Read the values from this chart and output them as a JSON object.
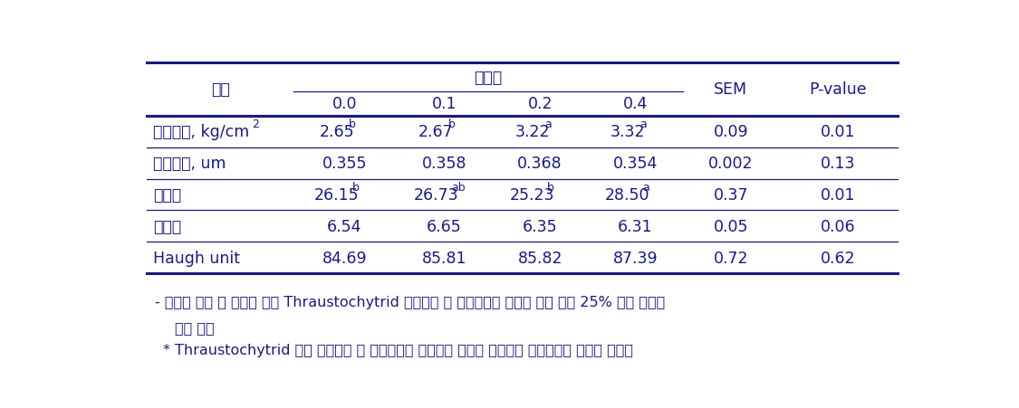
{
  "rows": [
    {
      "col0": "난각강도, kg/cm",
      "col0_sup": "2",
      "col1": "2.65",
      "col1_sup": "b",
      "col2": "2.67",
      "col2_sup": "b",
      "col3": "3.22",
      "col3_sup": "a",
      "col4": "3.32",
      "col4_sup": "a",
      "col5": "0.09",
      "col6": "0.01"
    },
    {
      "col0": "난각두께, um",
      "col0_sup": "",
      "col1": "0.355",
      "col1_sup": "",
      "col2": "0.358",
      "col2_sup": "",
      "col3": "0.368",
      "col3_sup": "",
      "col4": "0.354",
      "col4_sup": "",
      "col5": "0.002",
      "col6": "0.13"
    },
    {
      "col0": "난각색",
      "col0_sup": "",
      "col1": "26.15",
      "col1_sup": "b",
      "col2": "26.73",
      "col2_sup": "ab",
      "col3": "25.23",
      "col3_sup": "b",
      "col4": "28.50",
      "col4_sup": "a",
      "col5": "0.37",
      "col6": "0.01"
    },
    {
      "col0": "난황색",
      "col0_sup": "",
      "col1": "6.54",
      "col1_sup": "",
      "col2": "6.65",
      "col2_sup": "",
      "col3": "6.35",
      "col3_sup": "",
      "col4": "6.31",
      "col4_sup": "",
      "col5": "0.05",
      "col6": "0.06"
    },
    {
      "col0": "Haugh unit",
      "col0_sup": "",
      "col1": "84.69",
      "col1_sup": "",
      "col2": "85.81",
      "col2_sup": "",
      "col3": "85.82",
      "col3_sup": "",
      "col4": "87.39",
      "col4_sup": "",
      "col5": "0.72",
      "col6": "0.62"
    }
  ],
  "header_item": "항목",
  "header_treatment": "처리구",
  "header_sub": [
    "0.0",
    "0.1",
    "0.2",
    "0.4"
  ],
  "header_sem": "SEM",
  "header_pvalue": "P-value",
  "footnote1": "- 산란계 사료 내 기능성 균주 Thraustochytrid 첨가급여 시 난각강도는 대조구 대비 최대 25% 이상 유의적",
  "footnote2": "으로 개선",
  "footnote3": "* Thraustochytrid 균주 첨가급여 시 난각강도는 유의적인 개선이 있었으나 두께에서는 차이가 없었음",
  "text_color": "#1a1a7e",
  "border_color": "#1a1a7e",
  "bg_color": "#ffffff",
  "font_size": 12.5
}
